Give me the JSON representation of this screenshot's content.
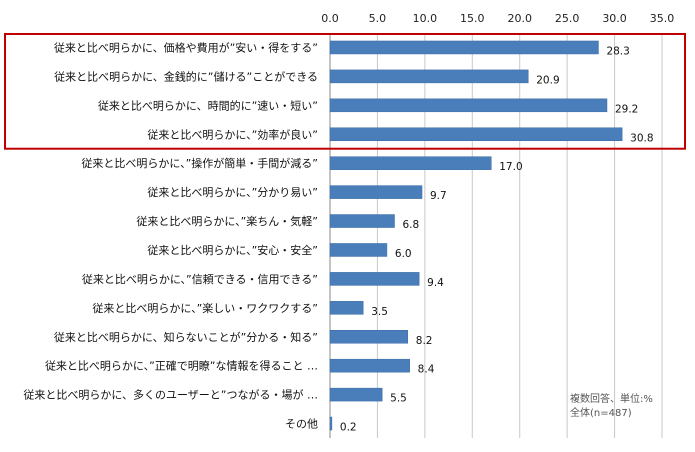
{
  "chart_data": {
    "type": "bar",
    "orientation": "horizontal",
    "categories": [
      "従来と比べ明らかに、価格や費用が”安い・得をする”",
      "従来と比べ明らかに、金銭的に”儲ける”ことができる",
      "従来と比べ明らかに、時間的に”速い・短い”",
      "従来と比べ明らかに、”効率が良い”",
      "従来と比べ明らかに、”操作が簡単・手間が減る”",
      "従来と比べ明らかに、”分かり易い”",
      "従来と比べ明らかに、”楽ちん・気軽”",
      "従来と比べ明らかに、”安心・安全”",
      "従来と比べ明らかに、”信頼できる・信用できる”",
      "従来と比べ明らかに、”楽しい・ワクワクする”",
      "従来と比べ明らかに、知らないことが”分かる・知る”",
      "従来と比べ明らかに、”正確で明瞭”な情報を得ること …",
      "従来と比べ明らかに、多くのユーザーと”つながる・場が …",
      "その他"
    ],
    "values": [
      28.3,
      20.9,
      29.2,
      30.8,
      17.0,
      9.7,
      6.8,
      6.0,
      9.4,
      3.5,
      8.2,
      8.4,
      5.5,
      0.2
    ],
    "value_labels": [
      "28.3",
      "20.9",
      "29.2",
      "30.8",
      "17.0",
      "9.7",
      "6.8",
      "6.0",
      "9.4",
      "3.5",
      "8.2",
      "8.4",
      "5.5",
      "0.2"
    ],
    "xlim": [
      0,
      35
    ],
    "ticks": [
      "0.0",
      "5.0",
      "10.0",
      "15.0",
      "20.0",
      "25.0",
      "30.0",
      "35.0"
    ],
    "axis_position": "top",
    "grid": true,
    "highlight_group": [
      0,
      1,
      2,
      3
    ],
    "note_lines": [
      "複数回答、単位:%",
      "全体(n=487)"
    ],
    "colors": {
      "bar": "#4a7ebb",
      "bar_edge": "#3a6aa3",
      "grid": "#c8c8c8",
      "highlight_box": "#c00000"
    }
  }
}
